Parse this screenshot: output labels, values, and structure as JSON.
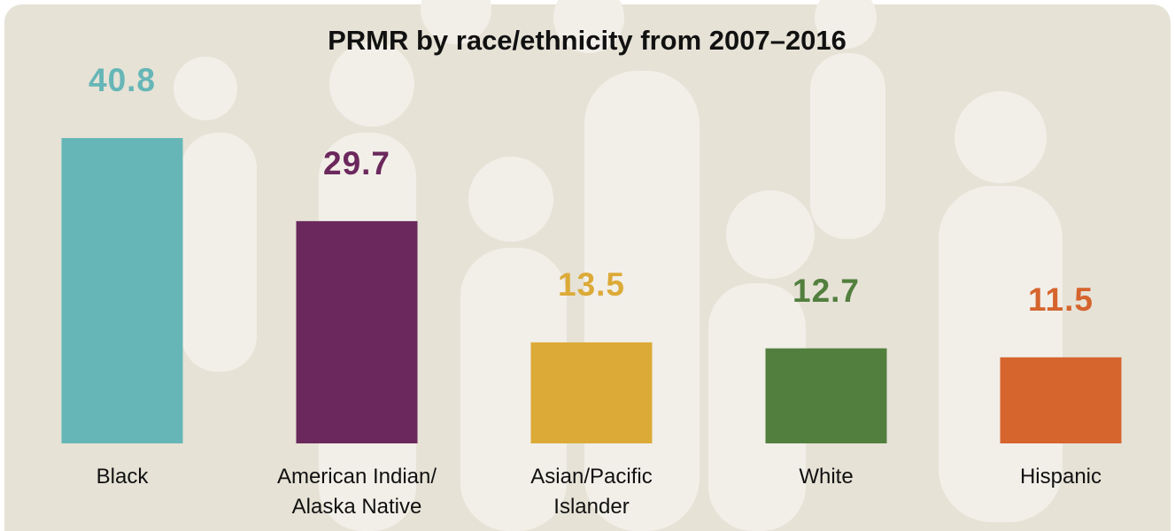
{
  "chart_data": {
    "type": "bar",
    "title": "PRMR by race/ethnicity from 2007–2016",
    "categories": [
      "Black",
      "American Indian/\nAlaska Native",
      "Asian/Pacific\nIslander",
      "White",
      "Hispanic"
    ],
    "values": [
      40.8,
      29.7,
      13.5,
      12.7,
      11.5
    ],
    "colors": [
      "#66b6b7",
      "#6b285c",
      "#dcaa37",
      "#527f3e",
      "#d5642d"
    ]
  }
}
